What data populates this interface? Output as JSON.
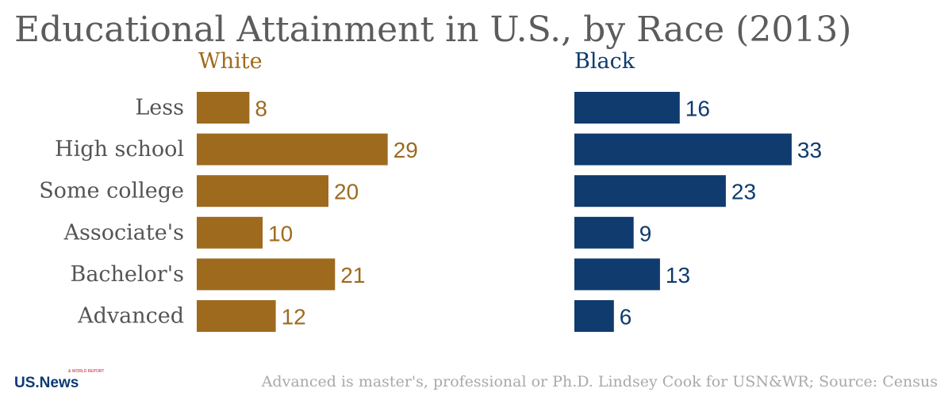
{
  "chart_data": {
    "type": "bar",
    "orientation": "horizontal",
    "title": "Educational Attainment in U.S., by Race (2013)",
    "categories": [
      "Less",
      "High school",
      "Some college",
      "Associate's",
      "Bachelor's",
      "Advanced"
    ],
    "series": [
      {
        "name": "White",
        "values": [
          8,
          29,
          20,
          10,
          21,
          12
        ],
        "color": "#9e6a1e"
      },
      {
        "name": "Black",
        "values": [
          16,
          33,
          23,
          9,
          13,
          6
        ],
        "color": "#0f3b6e"
      }
    ],
    "grid": false,
    "legend": "none"
  },
  "footer": {
    "logo_text": "US.News",
    "logo_small": "& WORLD REPORT",
    "note": "Advanced is master's, professional or Ph.D. Lindsey Cook for USN&WR; Source: Census"
  }
}
